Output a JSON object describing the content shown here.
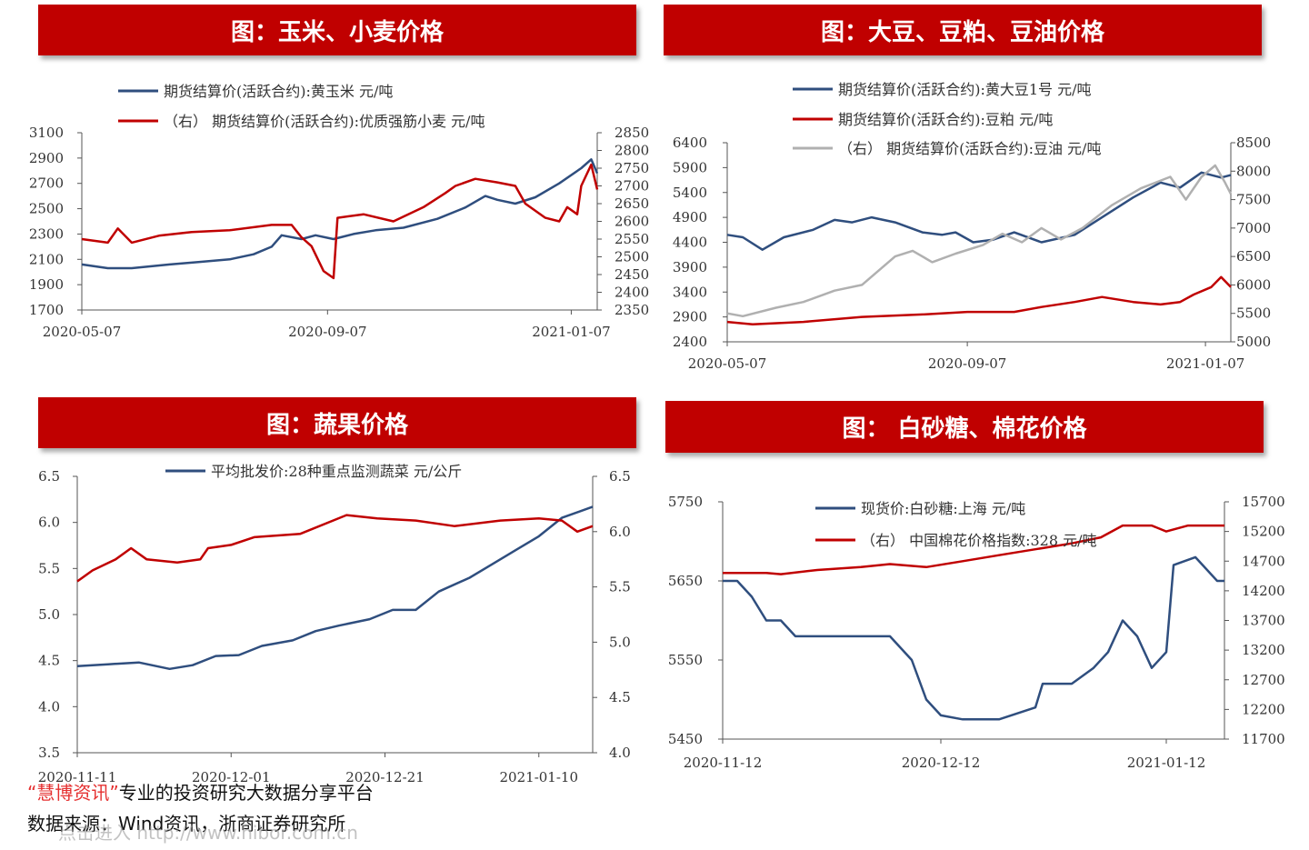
{
  "chart_data": [
    {
      "id": "corn_wheat",
      "type": "line",
      "title": "图：玉米、小麦价格",
      "x_range": [
        "2020-05-07",
        "2021-01-20"
      ],
      "x_ticks": [
        "2020-05-07",
        "2020-09-07",
        "2021-01-07"
      ],
      "y_left_range": [
        1700,
        3100
      ],
      "y_left_ticks": [
        "3100",
        "2900",
        "2700",
        "2500",
        "2300",
        "2100",
        "1900",
        "1700"
      ],
      "y_right_range": [
        2350,
        2850
      ],
      "y_right_ticks": [
        "2850",
        "2800",
        "2750",
        "2700",
        "2650",
        "2600",
        "2550",
        "2500",
        "2450",
        "2400",
        "2350"
      ],
      "series": [
        {
          "name": "期货结算价(活跃合约):黄玉米  元/吨",
          "color": "#2f4e7e",
          "axis": "left",
          "points": [
            [
              "2020-05-07",
              2060
            ],
            [
              "2020-05-20",
              2030
            ],
            [
              "2020-06-01",
              2030
            ],
            [
              "2020-06-20",
              2060
            ],
            [
              "2020-07-05",
              2080
            ],
            [
              "2020-07-20",
              2100
            ],
            [
              "2020-08-01",
              2140
            ],
            [
              "2020-08-10",
              2200
            ],
            [
              "2020-08-15",
              2290
            ],
            [
              "2020-08-25",
              2260
            ],
            [
              "2020-09-01",
              2290
            ],
            [
              "2020-09-10",
              2260
            ],
            [
              "2020-09-20",
              2300
            ],
            [
              "2020-10-01",
              2330
            ],
            [
              "2020-10-15",
              2350
            ],
            [
              "2020-11-01",
              2420
            ],
            [
              "2020-11-15",
              2510
            ],
            [
              "2020-11-25",
              2600
            ],
            [
              "2020-12-01",
              2570
            ],
            [
              "2020-12-10",
              2540
            ],
            [
              "2020-12-20",
              2590
            ],
            [
              "2021-01-01",
              2700
            ],
            [
              "2021-01-12",
              2820
            ],
            [
              "2021-01-17",
              2890
            ],
            [
              "2021-01-20",
              2780
            ]
          ]
        },
        {
          "name": "（右） 期货结算价(活跃合约):优质强筋小麦  元/吨",
          "color": "#c00000",
          "axis": "right",
          "points": [
            [
              "2020-05-07",
              2550
            ],
            [
              "2020-05-20",
              2540
            ],
            [
              "2020-05-25",
              2580
            ],
            [
              "2020-06-01",
              2540
            ],
            [
              "2020-06-15",
              2560
            ],
            [
              "2020-07-01",
              2570
            ],
            [
              "2020-07-20",
              2575
            ],
            [
              "2020-08-10",
              2590
            ],
            [
              "2020-08-20",
              2590
            ],
            [
              "2020-08-25",
              2555
            ],
            [
              "2020-08-30",
              2530
            ],
            [
              "2020-09-05",
              2460
            ],
            [
              "2020-09-10",
              2440
            ],
            [
              "2020-09-12",
              2610
            ],
            [
              "2020-09-25",
              2620
            ],
            [
              "2020-10-10",
              2600
            ],
            [
              "2020-10-25",
              2640
            ],
            [
              "2020-11-05",
              2680
            ],
            [
              "2020-11-10",
              2700
            ],
            [
              "2020-11-20",
              2720
            ],
            [
              "2020-12-01",
              2710
            ],
            [
              "2020-12-10",
              2700
            ],
            [
              "2020-12-15",
              2650
            ],
            [
              "2020-12-25",
              2610
            ],
            [
              "2021-01-01",
              2600
            ],
            [
              "2021-01-05",
              2640
            ],
            [
              "2021-01-10",
              2620
            ],
            [
              "2021-01-12",
              2700
            ],
            [
              "2021-01-17",
              2760
            ],
            [
              "2021-01-20",
              2690
            ]
          ]
        }
      ]
    },
    {
      "id": "soy",
      "type": "line",
      "title": "图：大豆、豆粕、豆油价格",
      "x_range": [
        "2020-05-07",
        "2021-01-20"
      ],
      "x_ticks": [
        "2020-05-07",
        "2020-09-07",
        "2021-01-07"
      ],
      "y_left_range": [
        2400,
        6400
      ],
      "y_left_ticks": [
        "6400",
        "5900",
        "5400",
        "4900",
        "4400",
        "3900",
        "3400",
        "2900",
        "2400"
      ],
      "y_right_range": [
        5000,
        8500
      ],
      "y_right_ticks": [
        "8500",
        "8000",
        "7500",
        "7000",
        "6500",
        "6000",
        "5500",
        "5000"
      ],
      "series": [
        {
          "name": "期货结算价(活跃合约):黄大豆1号  元/吨",
          "color": "#2f4e7e",
          "axis": "left",
          "points": [
            [
              "2020-05-07",
              4550
            ],
            [
              "2020-05-15",
              4500
            ],
            [
              "2020-05-25",
              4250
            ],
            [
              "2020-06-05",
              4500
            ],
            [
              "2020-06-20",
              4650
            ],
            [
              "2020-07-01",
              4850
            ],
            [
              "2020-07-10",
              4800
            ],
            [
              "2020-07-20",
              4900
            ],
            [
              "2020-08-01",
              4800
            ],
            [
              "2020-08-15",
              4600
            ],
            [
              "2020-08-25",
              4550
            ],
            [
              "2020-09-01",
              4600
            ],
            [
              "2020-09-10",
              4400
            ],
            [
              "2020-09-20",
              4450
            ],
            [
              "2020-10-01",
              4600
            ],
            [
              "2020-10-15",
              4400
            ],
            [
              "2020-11-01",
              4550
            ],
            [
              "2020-11-15",
              4900
            ],
            [
              "2020-12-01",
              5300
            ],
            [
              "2020-12-15",
              5600
            ],
            [
              "2020-12-25",
              5500
            ],
            [
              "2021-01-05",
              5800
            ],
            [
              "2021-01-15",
              5700
            ],
            [
              "2021-01-20",
              5750
            ]
          ]
        },
        {
          "name": "期货结算价(活跃合约):豆粕  元/吨",
          "color": "#c00000",
          "axis": "left",
          "points": [
            [
              "2020-05-07",
              2800
            ],
            [
              "2020-05-20",
              2750
            ],
            [
              "2020-06-15",
              2800
            ],
            [
              "2020-07-15",
              2900
            ],
            [
              "2020-08-15",
              2950
            ],
            [
              "2020-09-07",
              3000
            ],
            [
              "2020-10-01",
              3000
            ],
            [
              "2020-10-15",
              3100
            ],
            [
              "2020-11-01",
              3200
            ],
            [
              "2020-11-15",
              3300
            ],
            [
              "2020-12-01",
              3200
            ],
            [
              "2020-12-15",
              3150
            ],
            [
              "2020-12-25",
              3200
            ],
            [
              "2021-01-01",
              3350
            ],
            [
              "2021-01-10",
              3500
            ],
            [
              "2021-01-15",
              3700
            ],
            [
              "2021-01-20",
              3500
            ]
          ]
        },
        {
          "name": "（右） 期货结算价(活跃合约):豆油  元/吨",
          "color": "#b0b0b0",
          "axis": "right",
          "points": [
            [
              "2020-05-07",
              5500
            ],
            [
              "2020-05-15",
              5450
            ],
            [
              "2020-06-01",
              5600
            ],
            [
              "2020-06-15",
              5700
            ],
            [
              "2020-07-01",
              5900
            ],
            [
              "2020-07-15",
              6000
            ],
            [
              "2020-08-01",
              6500
            ],
            [
              "2020-08-10",
              6600
            ],
            [
              "2020-08-20",
              6400
            ],
            [
              "2020-09-01",
              6550
            ],
            [
              "2020-09-15",
              6700
            ],
            [
              "2020-09-25",
              6900
            ],
            [
              "2020-10-05",
              6750
            ],
            [
              "2020-10-15",
              7000
            ],
            [
              "2020-10-25",
              6800
            ],
            [
              "2020-11-05",
              7000
            ],
            [
              "2020-11-20",
              7400
            ],
            [
              "2020-12-05",
              7700
            ],
            [
              "2020-12-20",
              7900
            ],
            [
              "2020-12-28",
              7500
            ],
            [
              "2021-01-05",
              7900
            ],
            [
              "2021-01-12",
              8100
            ],
            [
              "2021-01-17",
              7800
            ],
            [
              "2021-01-20",
              7600
            ]
          ]
        }
      ]
    },
    {
      "id": "veg_fruit",
      "type": "line",
      "title": "图：蔬果价格",
      "x_range": [
        "2020-11-11",
        "2021-01-17"
      ],
      "x_ticks": [
        "2020-11-11",
        "2020-12-01",
        "2020-12-21",
        "2021-01-10"
      ],
      "y_left_range": [
        3.5,
        6.5
      ],
      "y_left_ticks": [
        "6.5",
        "6.0",
        "5.5",
        "5.0",
        "4.5",
        "4.0",
        "3.5"
      ],
      "y_right_range": [
        4.0,
        6.5
      ],
      "y_right_ticks": [
        "6.5",
        "6.0",
        "5.5",
        "5.0",
        "4.5",
        "4.0"
      ],
      "series": [
        {
          "name": "平均批发价:28种重点监测蔬菜  元/公斤",
          "color": "#2f4e7e",
          "axis": "left",
          "points": [
            [
              "2020-11-11",
              4.44
            ],
            [
              "2020-11-15",
              4.46
            ],
            [
              "2020-11-19",
              4.48
            ],
            [
              "2020-11-23",
              4.41
            ],
            [
              "2020-11-26",
              4.45
            ],
            [
              "2020-11-29",
              4.55
            ],
            [
              "2020-12-02",
              4.56
            ],
            [
              "2020-12-05",
              4.66
            ],
            [
              "2020-12-09",
              4.72
            ],
            [
              "2020-12-12",
              4.82
            ],
            [
              "2020-12-15",
              4.88
            ],
            [
              "2020-12-19",
              4.95
            ],
            [
              "2020-12-22",
              5.05
            ],
            [
              "2020-12-25",
              5.05
            ],
            [
              "2020-12-28",
              5.25
            ],
            [
              "2021-01-01",
              5.4
            ],
            [
              "2021-01-04",
              5.55
            ],
            [
              "2021-01-07",
              5.7
            ],
            [
              "2021-01-10",
              5.85
            ],
            [
              "2021-01-13",
              6.05
            ],
            [
              "2021-01-17",
              6.17
            ]
          ]
        },
        {
          "name": "",
          "color": "#c00000",
          "axis": "right",
          "points": [
            [
              "2020-11-11",
              5.55
            ],
            [
              "2020-11-13",
              5.65
            ],
            [
              "2020-11-16",
              5.75
            ],
            [
              "2020-11-18",
              5.85
            ],
            [
              "2020-11-20",
              5.75
            ],
            [
              "2020-11-24",
              5.72
            ],
            [
              "2020-11-27",
              5.75
            ],
            [
              "2020-11-28",
              5.85
            ],
            [
              "2020-12-01",
              5.88
            ],
            [
              "2020-12-04",
              5.95
            ],
            [
              "2020-12-10",
              5.98
            ],
            [
              "2020-12-16",
              6.15
            ],
            [
              "2020-12-20",
              6.12
            ],
            [
              "2020-12-25",
              6.1
            ],
            [
              "2020-12-30",
              6.05
            ],
            [
              "2021-01-05",
              6.1
            ],
            [
              "2021-01-10",
              6.12
            ],
            [
              "2021-01-13",
              6.1
            ],
            [
              "2021-01-15",
              6.0
            ],
            [
              "2021-01-17",
              6.05
            ]
          ]
        }
      ]
    },
    {
      "id": "sugar_cotton",
      "type": "line",
      "title": "图： 白砂糖、棉花价格",
      "x_range": [
        "2020-11-12",
        "2021-01-20"
      ],
      "x_ticks": [
        "2020-11-12",
        "2020-12-12",
        "2021-01-12"
      ],
      "y_left_range": [
        5450,
        5750
      ],
      "y_left_ticks": [
        "5750",
        "5650",
        "5550",
        "5450"
      ],
      "y_right_range": [
        11700,
        15700
      ],
      "y_right_ticks": [
        "15700",
        "15200",
        "14700",
        "14200",
        "13700",
        "13200",
        "12700",
        "12200",
        "11700"
      ],
      "series": [
        {
          "name": "现货价:白砂糖:上海  元/吨",
          "color": "#2f4e7e",
          "axis": "left",
          "points": [
            [
              "2020-11-12",
              5650
            ],
            [
              "2020-11-14",
              5650
            ],
            [
              "2020-11-16",
              5630
            ],
            [
              "2020-11-18",
              5600
            ],
            [
              "2020-11-20",
              5600
            ],
            [
              "2020-11-22",
              5580
            ],
            [
              "2020-11-30",
              5580
            ],
            [
              "2020-12-05",
              5580
            ],
            [
              "2020-12-08",
              5550
            ],
            [
              "2020-12-10",
              5500
            ],
            [
              "2020-12-12",
              5480
            ],
            [
              "2020-12-15",
              5475
            ],
            [
              "2020-12-20",
              5475
            ],
            [
              "2020-12-25",
              5490
            ],
            [
              "2020-12-26",
              5520
            ],
            [
              "2020-12-30",
              5520
            ],
            [
              "2021-01-02",
              5540
            ],
            [
              "2021-01-04",
              5560
            ],
            [
              "2021-01-06",
              5600
            ],
            [
              "2021-01-08",
              5580
            ],
            [
              "2021-01-10",
              5540
            ],
            [
              "2021-01-12",
              5560
            ],
            [
              "2021-01-13",
              5670
            ],
            [
              "2021-01-16",
              5680
            ],
            [
              "2021-01-19",
              5650
            ],
            [
              "2021-01-20",
              5650
            ]
          ]
        },
        {
          "name": "（右） 中国棉花价格指数:328  元/吨",
          "color": "#c00000",
          "axis": "right",
          "points": [
            [
              "2020-11-12",
              14500
            ],
            [
              "2020-11-18",
              14500
            ],
            [
              "2020-11-20",
              14480
            ],
            [
              "2020-11-25",
              14550
            ],
            [
              "2020-12-01",
              14600
            ],
            [
              "2020-12-05",
              14650
            ],
            [
              "2020-12-10",
              14600
            ],
            [
              "2020-12-15",
              14700
            ],
            [
              "2020-12-20",
              14800
            ],
            [
              "2020-12-25",
              14900
            ],
            [
              "2020-12-30",
              15000
            ],
            [
              "2021-01-03",
              15100
            ],
            [
              "2021-01-06",
              15300
            ],
            [
              "2021-01-10",
              15300
            ],
            [
              "2021-01-12",
              15200
            ],
            [
              "2021-01-15",
              15300
            ],
            [
              "2021-01-20",
              15300
            ]
          ]
        }
      ]
    }
  ],
  "footer": {
    "brand": "“慧博资讯”",
    "slogan": "专业的投资研究大数据分享平台",
    "source": "数据来源：Wind资讯，浙商证券研究所",
    "watermark": "点击进入 http://www.hibor.com.cn"
  }
}
